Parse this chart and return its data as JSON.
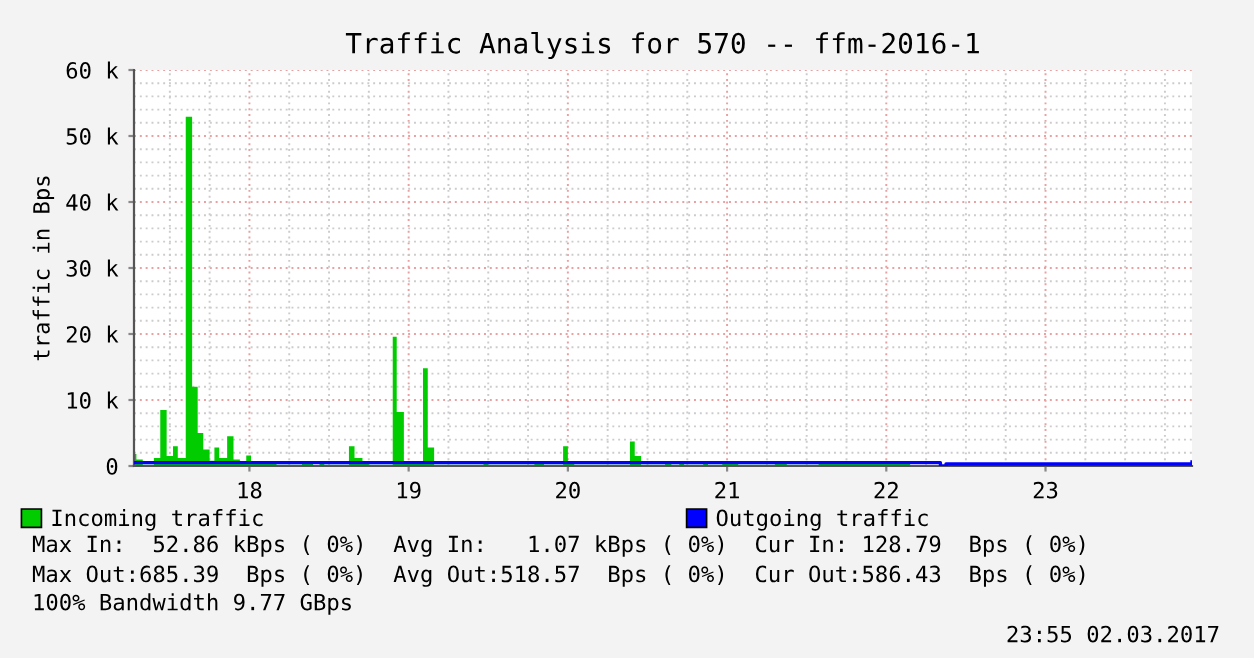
{
  "chart_data": {
    "type": "area",
    "title": "Traffic Analysis for 570 -- ffm-2016-1",
    "ylabel": "traffic in Bps",
    "xlim": [
      17.275,
      23.92
    ],
    "xticks": [
      18,
      19,
      20,
      21,
      22,
      23
    ],
    "ylim": [
      0,
      60000
    ],
    "yticks": [
      0,
      {
        "value": 10000,
        "label": "10 k"
      },
      {
        "value": 20000,
        "label": "20 k"
      },
      {
        "value": 30000,
        "label": "30 k"
      },
      {
        "value": 40000,
        "label": "40 k"
      },
      {
        "value": 50000,
        "label": "50 k"
      },
      {
        "value": 60000,
        "label": "60 k"
      }
    ],
    "grid": true,
    "legend": "bottom",
    "series": [
      {
        "name": "Incoming traffic",
        "color": "#00cc00",
        "x": [
          17.275,
          17.29,
          17.33,
          17.4,
          17.44,
          17.48,
          17.52,
          17.55,
          17.6,
          17.64,
          17.675,
          17.71,
          17.75,
          17.78,
          17.81,
          17.86,
          17.9,
          17.94,
          17.98,
          18.01,
          18.17,
          18.33,
          18.4,
          18.44,
          18.47,
          18.625,
          18.66,
          18.71,
          18.75,
          18.9,
          18.925,
          18.97,
          19.09,
          19.12,
          19.16,
          19.47,
          19.5,
          19.79,
          19.85,
          19.97,
          20.0,
          20.04,
          20.39,
          20.42,
          20.46,
          20.61,
          20.65,
          20.7,
          20.73,
          20.85,
          20.88,
          20.97,
          21.07,
          21.3,
          21.375,
          21.575,
          21.625,
          22.15,
          22.625,
          22.675,
          23.12,
          23.2,
          23.44,
          23.46,
          23.62,
          23.66,
          23.92
        ],
        "values": [
          1800,
          1000,
          200,
          1200,
          8500,
          1500,
          3000,
          1200,
          52900,
          12000,
          5000,
          2500,
          800,
          2800,
          1200,
          4500,
          1000,
          500,
          1600,
          500,
          200,
          500,
          100,
          500,
          200,
          3000,
          1200,
          600,
          200,
          19600,
          8200,
          500,
          14800,
          2800,
          200,
          500,
          200,
          500,
          200,
          3000,
          600,
          200,
          3700,
          1500,
          200,
          500,
          200,
          500,
          200,
          500,
          200,
          500,
          200,
          500,
          200,
          700,
          300,
          0,
          400,
          0,
          400,
          0,
          400,
          0,
          400,
          0,
          0
        ]
      },
      {
        "name": "Outgoing traffic",
        "type": "line",
        "color": "#0000ff",
        "x": [
          17.275,
          21.575,
          22.15,
          22.34,
          22.375,
          23.92
        ],
        "values": [
          500,
          500,
          500,
          0,
          300,
          600
        ]
      }
    ],
    "annotations": [
      "Max In:  52.86 kBps ( 0%)  Avg In:   1.07 kBps ( 0%)  Cur In: 128.79  Bps ( 0%)",
      "Max Out:685.39  Bps ( 0%)  Avg Out:518.57  Bps ( 0%)  Cur Out:586.43  Bps ( 0%)",
      "100% Bandwidth 9.77 GBps",
      "23:55 02.03.2017"
    ]
  }
}
